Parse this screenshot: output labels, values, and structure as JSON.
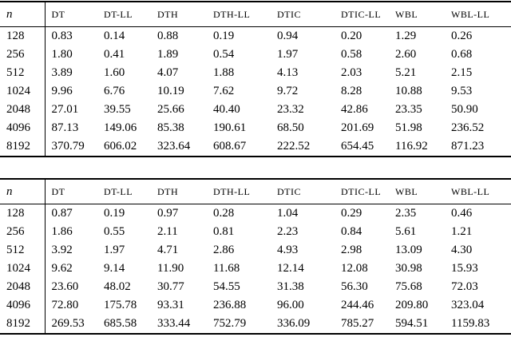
{
  "page": {
    "background": "#ffffff",
    "text_color": "#000000"
  },
  "tables": [
    {
      "title": "results-table-1",
      "columns": [
        "n",
        "DT",
        "DT-LL",
        "DTH",
        "DTH-LL",
        "DTIC",
        "DTIC-LL",
        "WBL",
        "WBL-LL"
      ],
      "rows": [
        [
          "128",
          "0.83",
          "0.14",
          "0.88",
          "0.19",
          "0.94",
          "0.20",
          "1.29",
          "0.26"
        ],
        [
          "256",
          "1.80",
          "0.41",
          "1.89",
          "0.54",
          "1.97",
          "0.58",
          "2.60",
          "0.68"
        ],
        [
          "512",
          "3.89",
          "1.60",
          "4.07",
          "1.88",
          "4.13",
          "2.03",
          "5.21",
          "2.15"
        ],
        [
          "1024",
          "9.96",
          "6.76",
          "10.19",
          "7.62",
          "9.72",
          "8.28",
          "10.88",
          "9.53"
        ],
        [
          "2048",
          "27.01",
          "39.55",
          "25.66",
          "40.40",
          "23.32",
          "42.86",
          "23.35",
          "50.90"
        ],
        [
          "4096",
          "87.13",
          "149.06",
          "85.38",
          "190.61",
          "68.50",
          "201.69",
          "51.98",
          "236.52"
        ],
        [
          "8192",
          "370.79",
          "606.02",
          "323.64",
          "608.67",
          "222.52",
          "654.45",
          "116.92",
          "871.23"
        ]
      ]
    },
    {
      "title": "results-table-2",
      "columns": [
        "n",
        "DT",
        "DT-LL",
        "DTH",
        "DTH-LL",
        "DTIC",
        "DTIC-LL",
        "WBL",
        "WBL-LL"
      ],
      "rows": [
        [
          "128",
          "0.87",
          "0.19",
          "0.97",
          "0.28",
          "1.04",
          "0.29",
          "2.35",
          "0.46"
        ],
        [
          "256",
          "1.86",
          "0.55",
          "2.11",
          "0.81",
          "2.23",
          "0.84",
          "5.61",
          "1.21"
        ],
        [
          "512",
          "3.92",
          "1.97",
          "4.71",
          "2.86",
          "4.93",
          "2.98",
          "13.09",
          "4.30"
        ],
        [
          "1024",
          "9.62",
          "9.14",
          "11.90",
          "11.68",
          "12.14",
          "12.08",
          "30.98",
          "15.93"
        ],
        [
          "2048",
          "23.60",
          "48.02",
          "30.77",
          "54.55",
          "31.38",
          "56.30",
          "75.68",
          "72.03"
        ],
        [
          "4096",
          "72.80",
          "175.78",
          "93.31",
          "236.88",
          "96.00",
          "244.46",
          "209.80",
          "323.04"
        ],
        [
          "8192",
          "269.53",
          "685.58",
          "333.44",
          "752.79",
          "336.09",
          "785.27",
          "594.51",
          "1159.83"
        ]
      ]
    }
  ]
}
